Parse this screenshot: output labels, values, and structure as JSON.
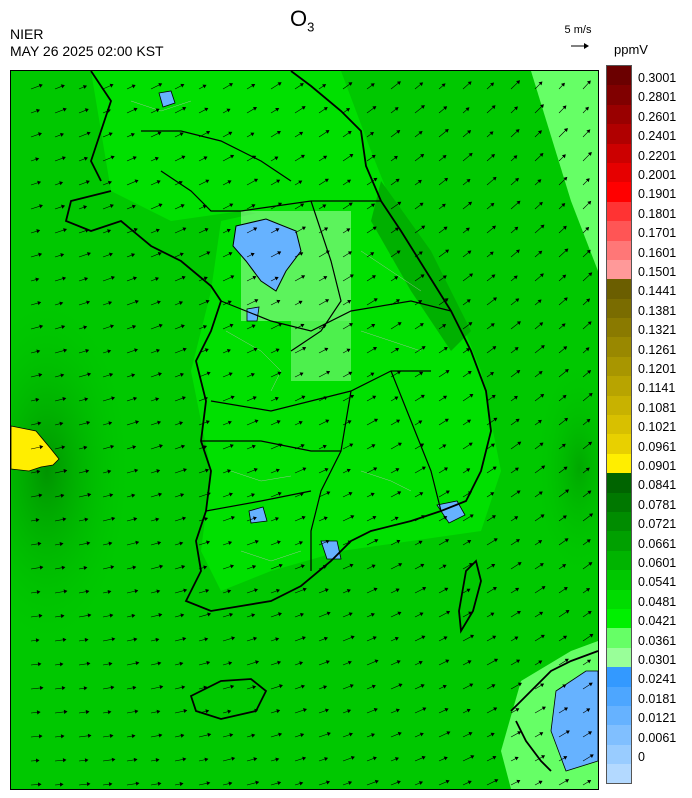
{
  "header": {
    "org": "NIER",
    "timestamp": "MAY 26 2025 02:00 KST",
    "title_main": "O",
    "title_sub": "3",
    "wind_ref": "5 m/s",
    "unit": "ppmV"
  },
  "legend": {
    "labels": [
      "0.3001",
      "0.2801",
      "0.2601",
      "0.2401",
      "0.2201",
      "0.2001",
      "0.1901",
      "0.1801",
      "0.1701",
      "0.1601",
      "0.1501",
      "0.1441",
      "0.1381",
      "0.1321",
      "0.1261",
      "0.1201",
      "0.1141",
      "0.1081",
      "0.1021",
      "0.0961",
      "0.0901",
      "0.0841",
      "0.0781",
      "0.0721",
      "0.0661",
      "0.0601",
      "0.0541",
      "0.0481",
      "0.0421",
      "0.0361",
      "0.0301",
      "0.0241",
      "0.0181",
      "0.0121",
      "0.0061",
      "0"
    ],
    "colors": [
      "#6b0000",
      "#800000",
      "#990000",
      "#b00000",
      "#cc0000",
      "#e60000",
      "#ff0000",
      "#ff3333",
      "#ff5555",
      "#ff7777",
      "#ff9999",
      "#6b5e00",
      "#7a6c00",
      "#8a7a00",
      "#998800",
      "#a89600",
      "#b8a400",
      "#c8b200",
      "#d8c000",
      "#e8d000",
      "#ffee00",
      "#006400",
      "#007800",
      "#008c00",
      "#00a000",
      "#00b400",
      "#00c800",
      "#00dc00",
      "#00f000",
      "#66ff66",
      "#99ff99",
      "#3399ff",
      "#4da6ff",
      "#66b2ff",
      "#80bfff",
      "#99ccff",
      "#b3d9ff"
    ]
  }
}
